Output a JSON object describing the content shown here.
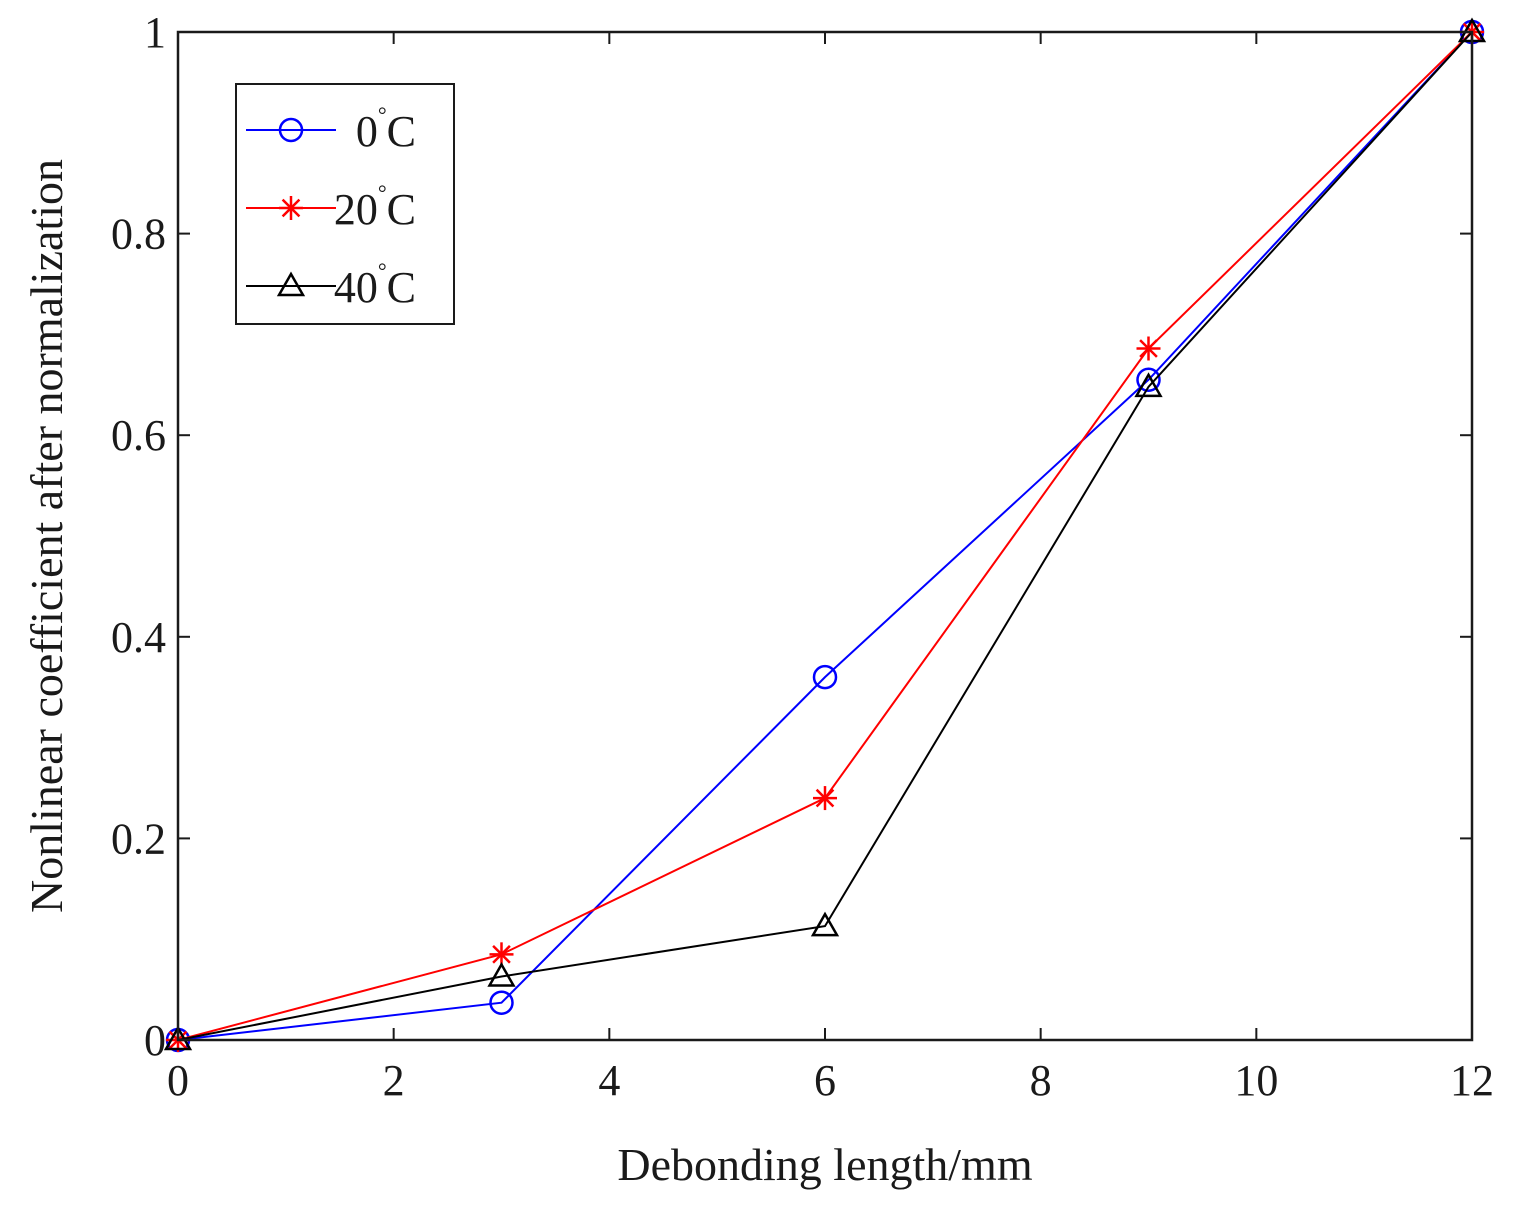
{
  "chart_data": {
    "type": "line",
    "title": "",
    "xlabel": "Debonding length/mm",
    "ylabel": "Nonlinear coefficient after normalization",
    "xlim": [
      0,
      12
    ],
    "ylim": [
      0,
      1
    ],
    "xticks": [
      0,
      2,
      4,
      6,
      8,
      10,
      12
    ],
    "xtick_labels": [
      "0",
      "2",
      "4",
      "6",
      "8",
      "10",
      "12"
    ],
    "yticks": [
      0,
      0.2,
      0.4,
      0.6,
      0.8,
      1
    ],
    "ytick_labels": [
      "0",
      "0.2",
      "0.4",
      "0.6",
      "0.8",
      "1"
    ],
    "grid": false,
    "legend_position": "top-left",
    "x": [
      0,
      3,
      6,
      9,
      12
    ],
    "series": [
      {
        "name": "0",
        "unit": "C",
        "degree_symbol": "°",
        "color": "#0000ff",
        "marker": "circle",
        "values": [
          0,
          0.037,
          0.36,
          0.655,
          1
        ]
      },
      {
        "name": "20",
        "unit": "C",
        "degree_symbol": "°",
        "color": "#ff0000",
        "marker": "asterisk",
        "values": [
          0,
          0.085,
          0.24,
          0.686,
          1
        ]
      },
      {
        "name": "40",
        "unit": "C",
        "degree_symbol": "°",
        "color": "#000000",
        "marker": "triangle",
        "values": [
          0,
          0.063,
          0.113,
          0.648,
          1
        ]
      }
    ]
  }
}
